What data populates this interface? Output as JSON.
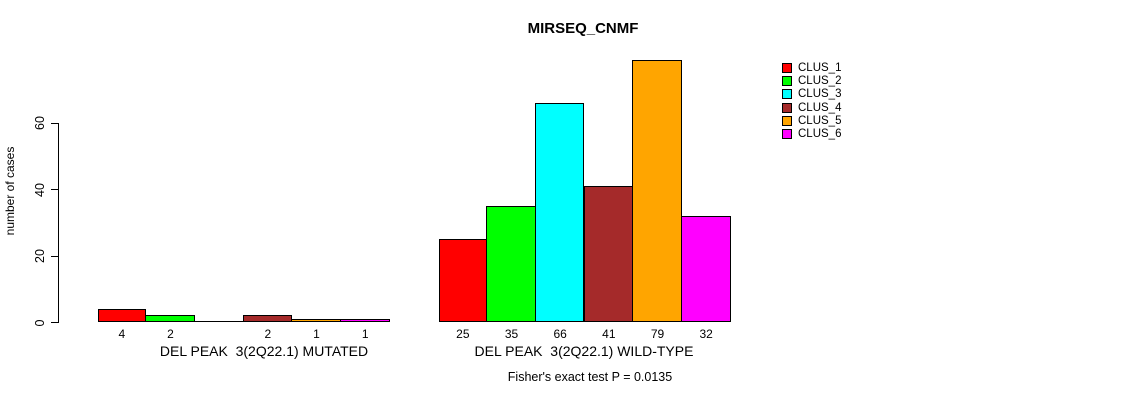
{
  "chart_data": {
    "type": "bar",
    "grouped": true,
    "title": "MIRSEQ_CNMF",
    "ylabel": "number of cases",
    "yticks": [
      0,
      20,
      40,
      60
    ],
    "ylim": [
      0,
      80
    ],
    "grid": false,
    "legend_position": "top-right",
    "categories": [
      "DEL PEAK  3(2Q22.1) MUTATED",
      "DEL PEAK  3(2Q22.1) WILD-TYPE"
    ],
    "series": [
      {
        "name": "CLUS_1",
        "color": "#ff0000",
        "values": [
          4,
          25
        ]
      },
      {
        "name": "CLUS_2",
        "color": "#00ff00",
        "values": [
          2,
          35
        ]
      },
      {
        "name": "CLUS_3",
        "color": "#00ffff",
        "values": [
          0,
          66
        ]
      },
      {
        "name": "CLUS_4",
        "color": "#a52a2a",
        "values": [
          2,
          41
        ]
      },
      {
        "name": "CLUS_5",
        "color": "#ffa500",
        "values": [
          1,
          79
        ]
      },
      {
        "name": "CLUS_6",
        "color": "#ff00ff",
        "values": [
          1,
          32
        ]
      }
    ],
    "bar_value_labels": [
      [
        "4",
        "2",
        "",
        "2",
        "1",
        "1"
      ],
      [
        "25",
        "35",
        "66",
        "41",
        "79",
        "32"
      ]
    ],
    "annotation": "Fisher's exact test P = 0.0135"
  }
}
